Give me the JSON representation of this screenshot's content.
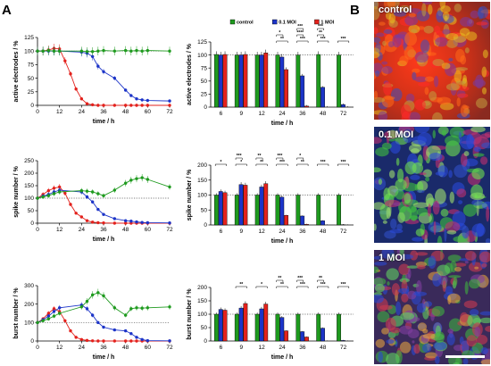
{
  "panels": {
    "A": "A",
    "B": "B"
  },
  "colors": {
    "control": "#1e9a1e",
    "moi01": "#1c34c8",
    "moi1": "#e3211c",
    "dotted": "#555555"
  },
  "legend": [
    {
      "key": "control",
      "label": "control"
    },
    {
      "key": "moi01",
      "label": "0.1 MOI"
    },
    {
      "key": "moi1",
      "label": "1 MOI"
    }
  ],
  "line_x_ticks": [
    "0",
    "12",
    "24",
    "36",
    "48",
    "60",
    "72"
  ],
  "bar_x_ticks": [
    "6",
    "9",
    "12",
    "24",
    "36",
    "48",
    "72"
  ],
  "time_label": "time / h",
  "micro_labels": [
    "control",
    "0.1 MOI",
    "1 MOI"
  ],
  "chart_data": [
    {
      "type": "line",
      "ylabel": "active electrodes / %",
      "xlabel": "time / h",
      "xlim": [
        0,
        72
      ],
      "ylim": [
        0,
        125
      ],
      "yticks": [
        0,
        25,
        50,
        75,
        100,
        125
      ],
      "reference_line": 100,
      "series": [
        {
          "key": "control",
          "x": [
            0,
            3,
            6,
            9,
            12,
            24,
            27,
            30,
            33,
            36,
            42,
            48,
            51,
            54,
            57,
            60,
            72
          ],
          "y": [
            100,
            100,
            101,
            100,
            100,
            100,
            99,
            99,
            100,
            101,
            100,
            101,
            100,
            101,
            100,
            101,
            100
          ]
        },
        {
          "key": "moi01",
          "x": [
            0,
            3,
            6,
            9,
            12,
            24,
            27,
            30,
            33,
            36,
            42,
            48,
            51,
            54,
            57,
            60,
            72
          ],
          "y": [
            100,
            100,
            100,
            100,
            100,
            98,
            96,
            90,
            72,
            62,
            50,
            28,
            18,
            12,
            10,
            9,
            8
          ]
        },
        {
          "key": "moi1",
          "x": [
            0,
            3,
            6,
            9,
            12,
            15,
            18,
            21,
            24,
            27,
            30,
            33,
            36,
            42,
            48,
            51,
            54,
            57,
            60,
            72
          ],
          "y": [
            100,
            100,
            102,
            105,
            104,
            82,
            58,
            30,
            12,
            3,
            1,
            0,
            0,
            0,
            0,
            0,
            0,
            0,
            0,
            0
          ]
        }
      ]
    },
    {
      "type": "bar",
      "ylabel": "active electrodes / %",
      "xlabel": "time / h",
      "categories": [
        "6",
        "9",
        "12",
        "24",
        "36",
        "48",
        "72"
      ],
      "ylim": [
        0,
        125
      ],
      "yticks": [
        0,
        25,
        50,
        75,
        100,
        125
      ],
      "reference_line": 100,
      "series": [
        {
          "key": "control",
          "values": [
            101,
            100,
            100,
            100,
            100,
            101,
            100
          ]
        },
        {
          "key": "moi01",
          "values": [
            100,
            100,
            100,
            96,
            60,
            38,
            5
          ]
        },
        {
          "key": "moi1",
          "values": [
            101,
            101,
            104,
            72,
            2,
            0,
            0
          ]
        }
      ],
      "significance": [
        {
          "cat": 3,
          "marks": [
            "**",
            "*"
          ]
        },
        {
          "cat": 4,
          "marks": [
            "***",
            "****",
            "***"
          ]
        },
        {
          "cat": 5,
          "marks": [
            "***",
            "**",
            "***"
          ]
        },
        {
          "cat": 6,
          "marks": [
            "***"
          ]
        }
      ]
    },
    {
      "type": "line",
      "ylabel": "spike number / %",
      "xlabel": "time / h",
      "xlim": [
        0,
        72
      ],
      "ylim": [
        0,
        250
      ],
      "yticks": [
        0,
        50,
        100,
        150,
        200,
        250
      ],
      "reference_line": 100,
      "series": [
        {
          "key": "control",
          "x": [
            0,
            3,
            6,
            9,
            12,
            24,
            27,
            30,
            33,
            36,
            42,
            48,
            51,
            54,
            57,
            60,
            72
          ],
          "y": [
            100,
            105,
            110,
            118,
            125,
            130,
            128,
            125,
            118,
            110,
            132,
            160,
            172,
            178,
            182,
            175,
            145
          ]
        },
        {
          "key": "moi01",
          "x": [
            0,
            3,
            6,
            9,
            12,
            24,
            27,
            30,
            33,
            36,
            42,
            48,
            51,
            54,
            57,
            60,
            72
          ],
          "y": [
            100,
            108,
            115,
            125,
            132,
            125,
            105,
            85,
            55,
            35,
            18,
            10,
            8,
            5,
            3,
            2,
            1
          ]
        },
        {
          "key": "moi1",
          "x": [
            0,
            3,
            6,
            9,
            12,
            15,
            18,
            21,
            24,
            27,
            30,
            33,
            36,
            42,
            48,
            51,
            54,
            57,
            60,
            72
          ],
          "y": [
            100,
            115,
            130,
            140,
            145,
            120,
            75,
            40,
            25,
            10,
            4,
            2,
            1,
            0,
            0,
            0,
            0,
            0,
            0,
            0
          ]
        }
      ]
    },
    {
      "type": "bar",
      "ylabel": "spike number / %",
      "xlabel": "time / h",
      "categories": [
        "6",
        "9",
        "12",
        "24",
        "36",
        "48",
        "72"
      ],
      "ylim": [
        0,
        200
      ],
      "yticks": [
        0,
        50,
        100,
        150,
        200
      ],
      "reference_line": 100,
      "series": [
        {
          "key": "control",
          "values": [
            100,
            100,
            100,
            100,
            100,
            100,
            100
          ]
        },
        {
          "key": "moi01",
          "values": [
            112,
            135,
            127,
            93,
            30,
            14,
            1
          ]
        },
        {
          "key": "moi1",
          "values": [
            108,
            133,
            138,
            32,
            2,
            0,
            0
          ]
        }
      ],
      "significance": [
        {
          "cat": 0,
          "marks": [
            "*"
          ]
        },
        {
          "cat": 1,
          "marks": [
            "*",
            "***"
          ]
        },
        {
          "cat": 2,
          "marks": [
            "**",
            "**"
          ]
        },
        {
          "cat": 3,
          "marks": [
            "***",
            "***"
          ]
        },
        {
          "cat": 4,
          "marks": [
            "**",
            "*"
          ]
        },
        {
          "cat": 5,
          "marks": [
            "***"
          ]
        },
        {
          "cat": 6,
          "marks": [
            "***"
          ]
        }
      ]
    },
    {
      "type": "line",
      "ylabel": "burst number / %",
      "xlabel": "time / h",
      "xlim": [
        0,
        72
      ],
      "ylim": [
        0,
        300
      ],
      "yticks": [
        0,
        100,
        200,
        300
      ],
      "reference_line": 100,
      "series": [
        {
          "key": "control",
          "x": [
            0,
            3,
            6,
            9,
            12,
            24,
            27,
            30,
            33,
            36,
            42,
            48,
            51,
            54,
            57,
            60,
            72
          ],
          "y": [
            100,
            110,
            120,
            135,
            150,
            185,
            215,
            250,
            262,
            245,
            180,
            140,
            175,
            180,
            178,
            180,
            185
          ]
        },
        {
          "key": "moi01",
          "x": [
            0,
            3,
            6,
            9,
            12,
            24,
            27,
            30,
            33,
            36,
            42,
            48,
            51,
            54,
            57,
            60,
            72
          ],
          "y": [
            100,
            115,
            135,
            160,
            180,
            195,
            175,
            140,
            100,
            75,
            60,
            55,
            40,
            20,
            8,
            2,
            1
          ]
        },
        {
          "key": "moi1",
          "x": [
            0,
            3,
            6,
            9,
            12,
            15,
            18,
            21,
            24,
            27,
            30,
            33,
            36,
            42,
            48,
            51,
            54,
            57,
            60,
            72
          ],
          "y": [
            100,
            120,
            150,
            175,
            160,
            110,
            55,
            20,
            8,
            3,
            1,
            0,
            0,
            0,
            0,
            0,
            0,
            0,
            0,
            0
          ]
        }
      ]
    },
    {
      "type": "bar",
      "ylabel": "burst number / %",
      "xlabel": "time / h",
      "categories": [
        "6",
        "9",
        "12",
        "24",
        "36",
        "48",
        "72"
      ],
      "ylim": [
        0,
        200
      ],
      "yticks": [
        0,
        50,
        100,
        150,
        200
      ],
      "reference_line": 100,
      "series": [
        {
          "key": "control",
          "values": [
            100,
            100,
            100,
            100,
            100,
            100,
            100
          ]
        },
        {
          "key": "moi01",
          "values": [
            118,
            123,
            120,
            88,
            35,
            48,
            2
          ]
        },
        {
          "key": "moi1",
          "values": [
            115,
            140,
            138,
            38,
            15,
            0,
            0
          ]
        }
      ],
      "significance": [
        {
          "cat": 1,
          "marks": [
            "**"
          ]
        },
        {
          "cat": 2,
          "marks": [
            "*"
          ]
        },
        {
          "cat": 3,
          "marks": [
            "**",
            "**"
          ]
        },
        {
          "cat": 4,
          "marks": [
            "***",
            "***"
          ]
        },
        {
          "cat": 5,
          "marks": [
            "***",
            "**"
          ]
        },
        {
          "cat": 6,
          "marks": [
            "***"
          ]
        }
      ]
    }
  ]
}
